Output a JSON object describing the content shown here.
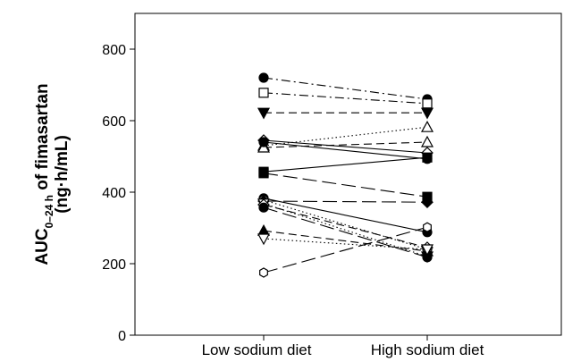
{
  "chart_data": {
    "type": "line",
    "categories": [
      "Low sodium diet",
      "High sodium diet"
    ],
    "ylabel": {
      "main": "AUC",
      "subscript": "0–24 h",
      "suffix": " of fimasartan",
      "line2": "(ng·h/mL)"
    },
    "ylim": [
      0,
      900
    ],
    "yticks": [
      0,
      200,
      400,
      600,
      800
    ],
    "grid": false,
    "series": [
      {
        "values": [
          720,
          660
        ],
        "dash": "dashdot",
        "marker": "circle",
        "fill": "black"
      },
      {
        "values": [
          678,
          648
        ],
        "dash": "dashdot",
        "marker": "square",
        "fill": "white"
      },
      {
        "values": [
          622,
          622
        ],
        "dash": "dashed",
        "marker": "triangle-down",
        "fill": "black"
      },
      {
        "values": [
          545,
          510
        ],
        "dash": "solid",
        "marker": "diamond",
        "fill": "white"
      },
      {
        "values": [
          530,
          582
        ],
        "dash": "dotted",
        "marker": "triangle-up",
        "fill": "white"
      },
      {
        "values": [
          525,
          540
        ],
        "dash": "dashed",
        "marker": "triangle-up",
        "fill": "white"
      },
      {
        "values": [
          540,
          493
        ],
        "dash": "solid",
        "marker": "circle",
        "fill": "black"
      },
      {
        "values": [
          457,
          497
        ],
        "dash": "solid",
        "marker": "square",
        "fill": "black"
      },
      {
        "values": [
          453,
          387
        ],
        "dash": "longdash",
        "marker": "square",
        "fill": "black"
      },
      {
        "values": [
          383,
          288
        ],
        "dash": "solid",
        "marker": "circle",
        "fill": "black"
      },
      {
        "values": [
          378,
          240
        ],
        "dash": "dotted",
        "marker": "circle",
        "fill": "white"
      },
      {
        "values": [
          375,
          372
        ],
        "dash": "longdash",
        "marker": "diamond",
        "fill": "black"
      },
      {
        "values": [
          368,
          220
        ],
        "dash": "dotted",
        "marker": "triangle-down",
        "fill": "white"
      },
      {
        "values": [
          365,
          245
        ],
        "dash": "dashed",
        "marker": "diamond",
        "fill": "white"
      },
      {
        "values": [
          357,
          218
        ],
        "dash": "longdash",
        "marker": "circle",
        "fill": "black"
      },
      {
        "values": [
          292,
          235
        ],
        "dash": "dashed",
        "marker": "triangle-up",
        "fill": "black"
      },
      {
        "values": [
          270,
          240
        ],
        "dash": "dotted",
        "marker": "triangle-down",
        "fill": "white"
      },
      {
        "values": [
          175,
          302
        ],
        "dash": "longdash",
        "marker": "hexagon",
        "fill": "white"
      }
    ]
  }
}
